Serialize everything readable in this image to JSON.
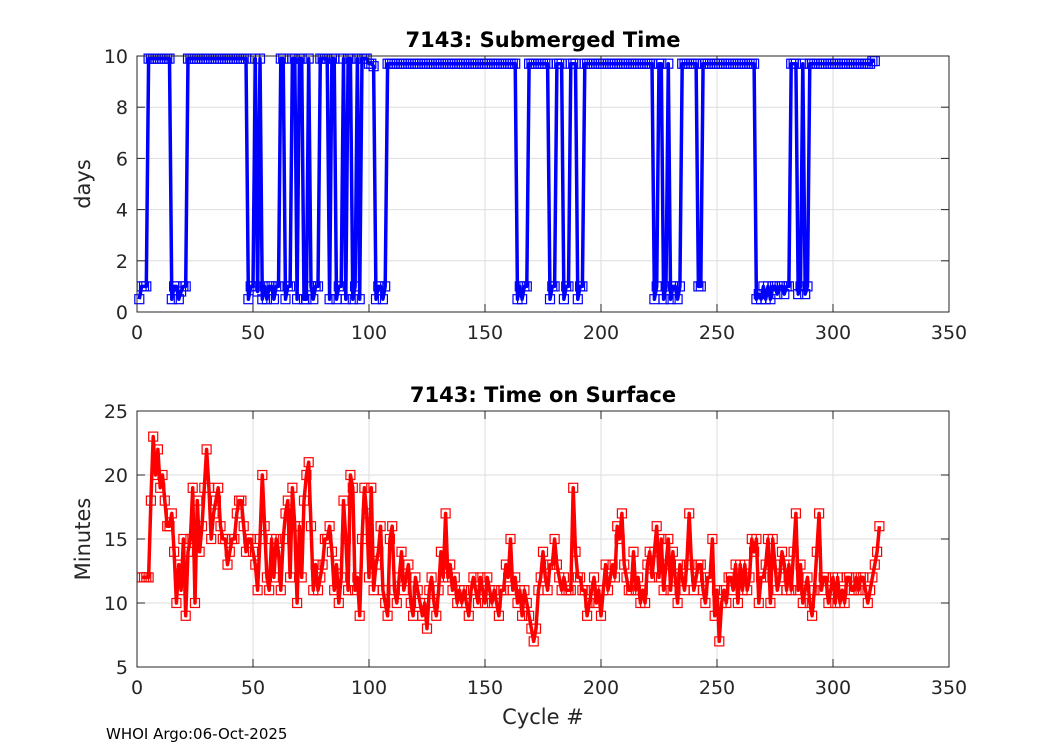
{
  "footer": "WHOI Argo:06-Oct-2025",
  "chart_data": [
    {
      "type": "line",
      "title": "7143: Submerged Time",
      "xlabel": "",
      "ylabel": "days",
      "xlim": [
        0,
        350
      ],
      "ylim": [
        0,
        10
      ],
      "xticks": [
        0,
        50,
        100,
        150,
        200,
        250,
        300,
        350
      ],
      "yticks": [
        0,
        2,
        4,
        6,
        8,
        10
      ],
      "grid": true,
      "color": "#0000ff",
      "marker": "square",
      "series": [
        {
          "name": "Submerged Time",
          "x": [],
          "y": []
        }
      ],
      "segments": [
        [
          1,
          0.5
        ],
        [
          2,
          1
        ],
        [
          3,
          1
        ],
        [
          4,
          1
        ],
        [
          5,
          9.9
        ],
        [
          14,
          9.9
        ],
        [
          15,
          0.5
        ],
        [
          16,
          1
        ],
        [
          17,
          1
        ],
        [
          18,
          0.5
        ],
        [
          19,
          0.8
        ],
        [
          20,
          1
        ],
        [
          21,
          1
        ],
        [
          22,
          9.9
        ],
        [
          47,
          9.9
        ],
        [
          48,
          0.5
        ],
        [
          49,
          1
        ],
        [
          50,
          1
        ],
        [
          51,
          9.9
        ],
        [
          52,
          0.8
        ],
        [
          53,
          9.9
        ],
        [
          54,
          0.5
        ],
        [
          55,
          1
        ],
        [
          56,
          0.5
        ],
        [
          57,
          1
        ],
        [
          58,
          1
        ],
        [
          59,
          0.5
        ],
        [
          60,
          1
        ],
        [
          61,
          1
        ],
        [
          62,
          9.9
        ],
        [
          63,
          9.9
        ],
        [
          64,
          0.5
        ],
        [
          65,
          1
        ],
        [
          66,
          1
        ],
        [
          67,
          9.9
        ],
        [
          68,
          9.9
        ],
        [
          69,
          0.5
        ],
        [
          70,
          9.9
        ],
        [
          71,
          9.9
        ],
        [
          72,
          0.5
        ],
        [
          73,
          0.5
        ],
        [
          74,
          9.9
        ],
        [
          75,
          1
        ],
        [
          76,
          0.5
        ],
        [
          77,
          1
        ],
        [
          78,
          1
        ],
        [
          79,
          9.9
        ],
        [
          80,
          9.9
        ],
        [
          81,
          9.9
        ],
        [
          82,
          9.9
        ],
        [
          83,
          0.5
        ],
        [
          84,
          9.9
        ],
        [
          85,
          9.9
        ],
        [
          86,
          0.5
        ],
        [
          87,
          1
        ],
        [
          88,
          1
        ],
        [
          89,
          9.9
        ],
        [
          90,
          0.5
        ],
        [
          91,
          9.9
        ],
        [
          92,
          9.9
        ],
        [
          93,
          0.5
        ],
        [
          94,
          1
        ],
        [
          95,
          9.9
        ],
        [
          96,
          0.5
        ],
        [
          97,
          9.9
        ],
        [
          98,
          9.9
        ],
        [
          99,
          9.9
        ],
        [
          100,
          9.7
        ],
        [
          101,
          9.7
        ],
        [
          102,
          9.6
        ],
        [
          103,
          0.5
        ],
        [
          104,
          1
        ],
        [
          105,
          1
        ],
        [
          106,
          0.5
        ],
        [
          107,
          1
        ],
        [
          108,
          9.7
        ],
        [
          163,
          9.7
        ],
        [
          164,
          0.5
        ],
        [
          165,
          1
        ],
        [
          166,
          0.5
        ],
        [
          167,
          1
        ],
        [
          168,
          1
        ],
        [
          169,
          9.7
        ],
        [
          177,
          9.7
        ],
        [
          178,
          0.5
        ],
        [
          179,
          1
        ],
        [
          180,
          1
        ],
        [
          181,
          9.7
        ],
        [
          182,
          9.7
        ],
        [
          183,
          9.7
        ],
        [
          184,
          0.5
        ],
        [
          185,
          1
        ],
        [
          186,
          1
        ],
        [
          187,
          9.7
        ],
        [
          188,
          9.7
        ],
        [
          189,
          9.7
        ],
        [
          190,
          0.5
        ],
        [
          191,
          1
        ],
        [
          192,
          1
        ],
        [
          193,
          9.7
        ],
        [
          222,
          9.7
        ],
        [
          223,
          0.5
        ],
        [
          224,
          1
        ],
        [
          225,
          9.7
        ],
        [
          226,
          9.7
        ],
        [
          227,
          0.5
        ],
        [
          228,
          1
        ],
        [
          229,
          9.7
        ],
        [
          230,
          0.5
        ],
        [
          231,
          1
        ],
        [
          232,
          1
        ],
        [
          233,
          0.5
        ],
        [
          234,
          1
        ],
        [
          235,
          9.7
        ],
        [
          241,
          9.7
        ],
        [
          242,
          1
        ],
        [
          243,
          1
        ],
        [
          244,
          9.7
        ],
        [
          266,
          9.7
        ],
        [
          267,
          0.5
        ],
        [
          268,
          0.7
        ],
        [
          269,
          0.5
        ],
        [
          270,
          1
        ],
        [
          271,
          0.5
        ],
        [
          272,
          1
        ],
        [
          273,
          0.5
        ],
        [
          274,
          1
        ],
        [
          275,
          1
        ],
        [
          276,
          0.7
        ],
        [
          277,
          1
        ],
        [
          278,
          1
        ],
        [
          279,
          0.7
        ],
        [
          280,
          1
        ],
        [
          281,
          1
        ],
        [
          282,
          9.7
        ],
        [
          283,
          9.7
        ],
        [
          284,
          9.7
        ],
        [
          285,
          0.7
        ],
        [
          286,
          1
        ],
        [
          287,
          9.7
        ],
        [
          288,
          0.7
        ],
        [
          289,
          1
        ],
        [
          290,
          9.7
        ],
        [
          316,
          9.7
        ],
        [
          317,
          9.8
        ],
        [
          318,
          9.8
        ]
      ]
    },
    {
      "type": "line",
      "title": "7143: Time on Surface",
      "xlabel": "Cycle #",
      "ylabel": "Minutes",
      "xlim": [
        0,
        350
      ],
      "ylim": [
        5,
        25
      ],
      "xticks": [
        0,
        50,
        100,
        150,
        200,
        250,
        300,
        350
      ],
      "yticks": [
        5,
        10,
        15,
        20,
        25
      ],
      "grid": true,
      "color": "#ff0000",
      "marker": "square",
      "series": [
        {
          "name": "Time on Surface",
          "x": [],
          "y": []
        }
      ],
      "values": [
        12,
        12,
        12,
        12,
        18,
        23,
        20,
        22,
        19,
        20,
        18,
        16,
        16,
        17,
        14,
        10,
        13,
        11,
        15,
        9,
        14,
        15,
        19,
        10,
        18,
        14,
        16,
        19,
        22,
        19,
        15,
        17,
        18,
        19,
        16,
        15,
        15,
        13,
        14,
        15,
        15,
        17,
        18,
        18,
        16,
        14,
        15,
        15,
        14,
        13,
        11,
        15,
        20,
        16,
        12,
        11,
        15,
        12,
        15,
        14,
        11,
        15,
        17,
        18,
        12,
        19,
        16,
        10,
        16,
        12,
        18,
        20,
        21,
        16,
        11,
        13,
        11,
        12,
        13,
        15,
        15,
        16,
        14,
        11,
        13,
        10,
        12,
        18,
        15,
        11,
        20,
        19,
        11,
        12,
        9,
        15,
        19,
        17,
        12,
        19,
        11,
        13,
        14,
        16,
        11,
        10,
        9,
        15,
        16,
        11,
        10,
        12,
        14,
        11,
        12,
        13,
        10,
        9,
        12,
        11,
        10,
        9,
        10,
        8,
        11,
        12,
        10,
        9,
        11,
        14,
        12,
        17,
        12,
        13,
        11,
        12,
        10,
        11,
        10,
        11,
        10,
        9,
        11,
        12,
        11,
        10,
        12,
        11,
        10,
        12,
        11,
        10,
        11,
        10,
        9,
        11,
        11,
        13,
        12,
        15,
        11,
        12,
        10,
        11,
        9,
        11,
        10,
        9,
        8,
        7,
        8,
        11,
        12,
        14,
        12,
        11,
        13,
        13,
        15,
        13,
        12,
        11,
        12,
        11,
        11,
        11,
        19,
        14,
        12,
        12,
        11,
        11,
        9,
        10,
        11,
        12,
        10,
        11,
        9,
        11,
        13,
        11,
        12,
        13,
        12,
        16,
        15,
        17,
        13,
        12,
        11,
        11,
        14,
        11,
        12,
        10,
        11,
        10,
        13,
        14,
        12,
        14,
        16,
        12,
        15,
        11,
        13,
        15,
        11,
        14,
        12,
        10,
        13,
        12,
        11,
        13,
        17,
        13,
        11,
        12,
        13,
        13,
        11,
        10,
        12,
        12,
        15,
        9,
        11,
        7,
        10,
        11,
        10,
        12,
        12,
        11,
        13,
        10,
        13,
        11,
        13,
        11,
        12,
        15,
        14,
        15,
        10,
        12,
        12,
        13,
        15,
        10,
        15,
        13,
        11,
        12,
        14,
        13,
        11,
        13,
        11,
        14,
        17,
        11,
        13,
        10,
        11,
        12,
        10,
        9,
        11,
        14,
        17,
        11,
        12,
        12,
        10,
        11,
        12,
        10,
        12,
        10,
        11,
        10,
        12,
        12,
        11,
        11,
        12,
        11,
        12,
        12,
        11,
        10,
        11,
        12,
        13,
        14,
        16
      ]
    }
  ]
}
